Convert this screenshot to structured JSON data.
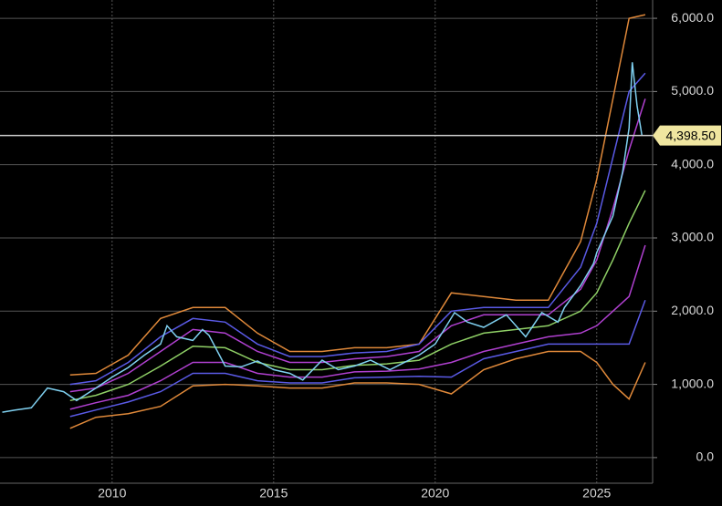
{
  "chart_data": {
    "type": "line",
    "xlim": [
      2006.53,
      2026.73
    ],
    "ylim": [
      -350,
      6250
    ],
    "xticks": [
      2010,
      2015,
      2020,
      2025
    ],
    "yticks": [
      {
        "value": 0,
        "label": "0.0"
      },
      {
        "value": 1000,
        "label": "1,000.0"
      },
      {
        "value": 2000,
        "label": "2,000.0"
      },
      {
        "value": 3000,
        "label": "3,000.0"
      },
      {
        "value": 4000,
        "label": "4,000.0"
      },
      {
        "value": 5000,
        "label": "5,000.0"
      },
      {
        "value": 6000,
        "label": "6,000.0"
      }
    ],
    "grid": true,
    "last_price": {
      "value": 4398.5,
      "label": "4,398.50",
      "color": "#f0e6a0"
    },
    "series": [
      {
        "color": "#e0893a",
        "x": [
          2008.7,
          2009.5,
          2010.5,
          2011.5,
          2012.5,
          2013.5,
          2014.5,
          2015.5,
          2016.5,
          2017.5,
          2018.5,
          2019.5,
          2020.5,
          2021.5,
          2022.5,
          2023.5,
          2024.5,
          2025.0,
          2025.5,
          2026.0,
          2026.5
        ],
        "values": [
          1130,
          1150,
          1400,
          1900,
          2050,
          2050,
          1700,
          1450,
          1450,
          1500,
          1500,
          1550,
          2250,
          2200,
          2150,
          2150,
          2950,
          3800,
          4900,
          6000,
          6050
        ]
      },
      {
        "color": "#e0893a",
        "x": [
          2008.7,
          2009.5,
          2010.5,
          2011.5,
          2012.5,
          2013.5,
          2014.5,
          2015.5,
          2016.5,
          2017.5,
          2018.5,
          2019.5,
          2020.5,
          2021.5,
          2022.5,
          2023.5,
          2024.5,
          2025.0,
          2025.5,
          2026.0,
          2026.5
        ],
        "values": [
          400,
          550,
          600,
          700,
          980,
          1000,
          980,
          950,
          950,
          1020,
          1020,
          1000,
          870,
          1200,
          1350,
          1450,
          1450,
          1300,
          1000,
          800,
          1300
        ]
      },
      {
        "color": "#5a5ae6",
        "x": [
          2008.7,
          2009.5,
          2010.5,
          2011.5,
          2012.5,
          2013.5,
          2014.5,
          2015.5,
          2016.5,
          2017.5,
          2018.5,
          2019.5,
          2020.5,
          2021.5,
          2022.5,
          2023.5,
          2024.5,
          2025.0,
          2025.5,
          2026.0,
          2026.5
        ],
        "values": [
          1000,
          1050,
          1300,
          1650,
          1900,
          1850,
          1550,
          1380,
          1380,
          1430,
          1450,
          1550,
          2000,
          2050,
          2050,
          2050,
          2600,
          3200,
          4100,
          5000,
          5250
        ]
      },
      {
        "color": "#5a5ae6",
        "x": [
          2008.7,
          2009.5,
          2010.5,
          2011.5,
          2012.5,
          2013.5,
          2014.5,
          2015.5,
          2016.5,
          2017.5,
          2018.5,
          2019.5,
          2020.5,
          2021.5,
          2022.5,
          2023.5,
          2024.5,
          2025.0,
          2025.5,
          2026.0,
          2026.5
        ],
        "values": [
          560,
          650,
          760,
          900,
          1150,
          1150,
          1050,
          1020,
          1020,
          1090,
          1100,
          1110,
          1100,
          1350,
          1450,
          1550,
          1550,
          1550,
          1550,
          1550,
          2150
        ]
      },
      {
        "color": "#b040d0",
        "x": [
          2008.7,
          2009.5,
          2010.5,
          2011.5,
          2012.5,
          2013.5,
          2014.5,
          2015.5,
          2016.5,
          2017.5,
          2018.5,
          2019.5,
          2020.5,
          2021.5,
          2022.5,
          2023.5,
          2024.5,
          2025.0,
          2025.5,
          2026.0,
          2026.5
        ],
        "values": [
          900,
          950,
          1150,
          1450,
          1750,
          1700,
          1450,
          1300,
          1300,
          1350,
          1380,
          1450,
          1800,
          1950,
          1950,
          1950,
          2300,
          2700,
          3400,
          4200,
          4900
        ]
      },
      {
        "color": "#b040d0",
        "x": [
          2008.7,
          2009.5,
          2010.5,
          2011.5,
          2012.5,
          2013.5,
          2014.5,
          2015.5,
          2016.5,
          2017.5,
          2018.5,
          2019.5,
          2020.5,
          2021.5,
          2022.5,
          2023.5,
          2024.5,
          2025.0,
          2025.5,
          2026.0,
          2026.5
        ],
        "values": [
          660,
          750,
          850,
          1050,
          1300,
          1300,
          1150,
          1100,
          1100,
          1170,
          1180,
          1210,
          1300,
          1450,
          1550,
          1650,
          1700,
          1800,
          2000,
          2200,
          2900
        ]
      },
      {
        "color": "#8fd066",
        "x": [
          2008.7,
          2009.5,
          2010.5,
          2011.5,
          2012.5,
          2013.5,
          2014.5,
          2015.5,
          2016.5,
          2017.5,
          2018.5,
          2019.5,
          2020.5,
          2021.5,
          2022.5,
          2023.5,
          2024.5,
          2025.0,
          2025.5,
          2026.0,
          2026.5
        ],
        "values": [
          780,
          850,
          1000,
          1250,
          1520,
          1500,
          1300,
          1200,
          1200,
          1260,
          1280,
          1330,
          1550,
          1700,
          1750,
          1800,
          2000,
          2250,
          2700,
          3200,
          3650
        ]
      },
      {
        "color": "#7fd0f0",
        "x": [
          2006.6,
          2007.0,
          2007.5,
          2008.0,
          2008.5,
          2008.9,
          2009.5,
          2010.0,
          2010.5,
          2011.0,
          2011.5,
          2011.7,
          2012.0,
          2012.5,
          2012.8,
          2013.0,
          2013.5,
          2014.0,
          2014.5,
          2015.0,
          2015.5,
          2015.9,
          2016.5,
          2017.0,
          2017.5,
          2018.0,
          2018.6,
          2019.0,
          2019.5,
          2020.0,
          2020.6,
          2021.0,
          2021.5,
          2022.2,
          2022.8,
          2023.3,
          2023.8,
          2024.0,
          2024.5,
          2024.9,
          2025.0,
          2025.5,
          2025.8,
          2026.0,
          2026.1,
          2026.25,
          2026.4
        ],
        "values": [
          620,
          650,
          680,
          950,
          900,
          780,
          950,
          1100,
          1230,
          1400,
          1550,
          1800,
          1650,
          1600,
          1750,
          1670,
          1250,
          1240,
          1320,
          1200,
          1150,
          1060,
          1330,
          1200,
          1250,
          1330,
          1200,
          1290,
          1400,
          1550,
          1980,
          1850,
          1780,
          1950,
          1650,
          1980,
          1850,
          2050,
          2350,
          2650,
          2800,
          3300,
          3900,
          4500,
          5400,
          4800,
          4398.5
        ]
      }
    ]
  }
}
